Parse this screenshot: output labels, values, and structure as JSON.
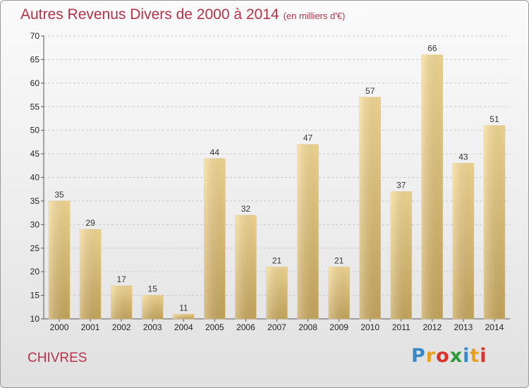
{
  "title": "Autres Revenus Divers de 2000 à 2014",
  "subtitle": "(en milliers d'€)",
  "town": "CHIVRES",
  "logo": {
    "text": "Proxiti",
    "colors": [
      "#3a87c8",
      "#e8a020",
      "#d9342b",
      "#2f9a3c",
      "#3a87c8",
      "#e8a020",
      "#d9342b"
    ]
  },
  "chart_data": {
    "type": "bar",
    "categories": [
      "2000",
      "2001",
      "2002",
      "2003",
      "2004",
      "2005",
      "2006",
      "2007",
      "2008",
      "2009",
      "2010",
      "2011",
      "2012",
      "2013",
      "2014"
    ],
    "values": [
      35,
      29,
      17,
      15,
      11,
      44,
      32,
      21,
      47,
      21,
      57,
      37,
      66,
      43,
      51
    ],
    "ylim": [
      10,
      70
    ],
    "yticks": [
      10,
      15,
      20,
      25,
      30,
      35,
      40,
      45,
      50,
      55,
      60,
      65,
      70
    ],
    "grid": "horizontal dashed",
    "bar_color": "#e9cf85"
  }
}
